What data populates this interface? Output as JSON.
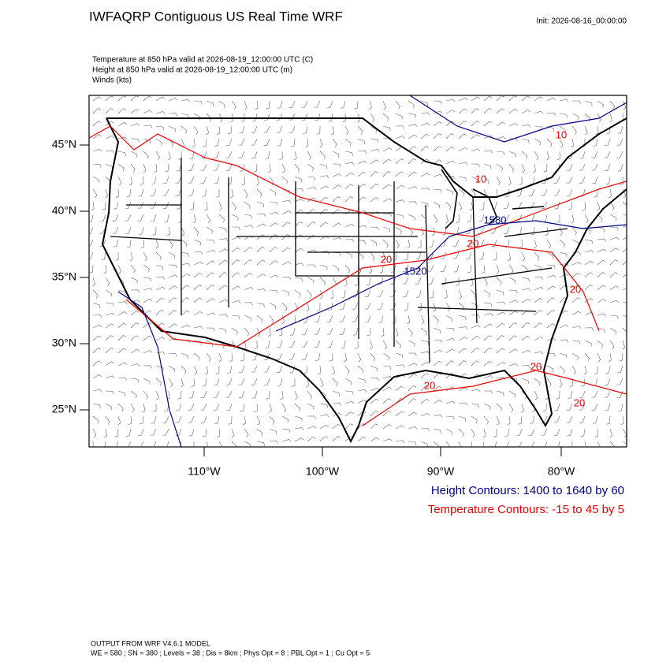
{
  "header": {
    "title": "IWFAQRP Contiguous US Real Time WRF",
    "init": "Init: 2026-08-16_00:00:00"
  },
  "subtitle": [
    "Temperature at 850 hPa valid at 2026-08-19_12:00:00 UTC   (C)",
    "Height at 850 hPa valid at 2026-08-19_12:00:00 UTC   (m)",
    "Winds   (kts)"
  ],
  "map": {
    "lat_labels": [
      "45°N",
      "40°N",
      "35°N",
      "30°N",
      "25°N"
    ],
    "lon_labels": [
      "110°W",
      "100°W",
      "90°W",
      "80°W"
    ],
    "height_labels": [
      "1520",
      "1580"
    ],
    "temperature_labels": [
      "10",
      "10",
      "20",
      "20",
      "20",
      "20",
      "20",
      "20"
    ]
  },
  "legend": {
    "height": "Height Contours: 1400 to 1640 by 60",
    "temperature": "Temperature Contours: -15 to 45 by 5"
  },
  "footer": [
    "OUTPUT FROM WRF V4.6.1 MODEL",
    "WE = 580 ; SN = 380 ; Levels = 38 ; Dis = 8km ; Phys Opt = 8 ; PBL Opt = 1 ; Cu Opt = 5"
  ]
}
